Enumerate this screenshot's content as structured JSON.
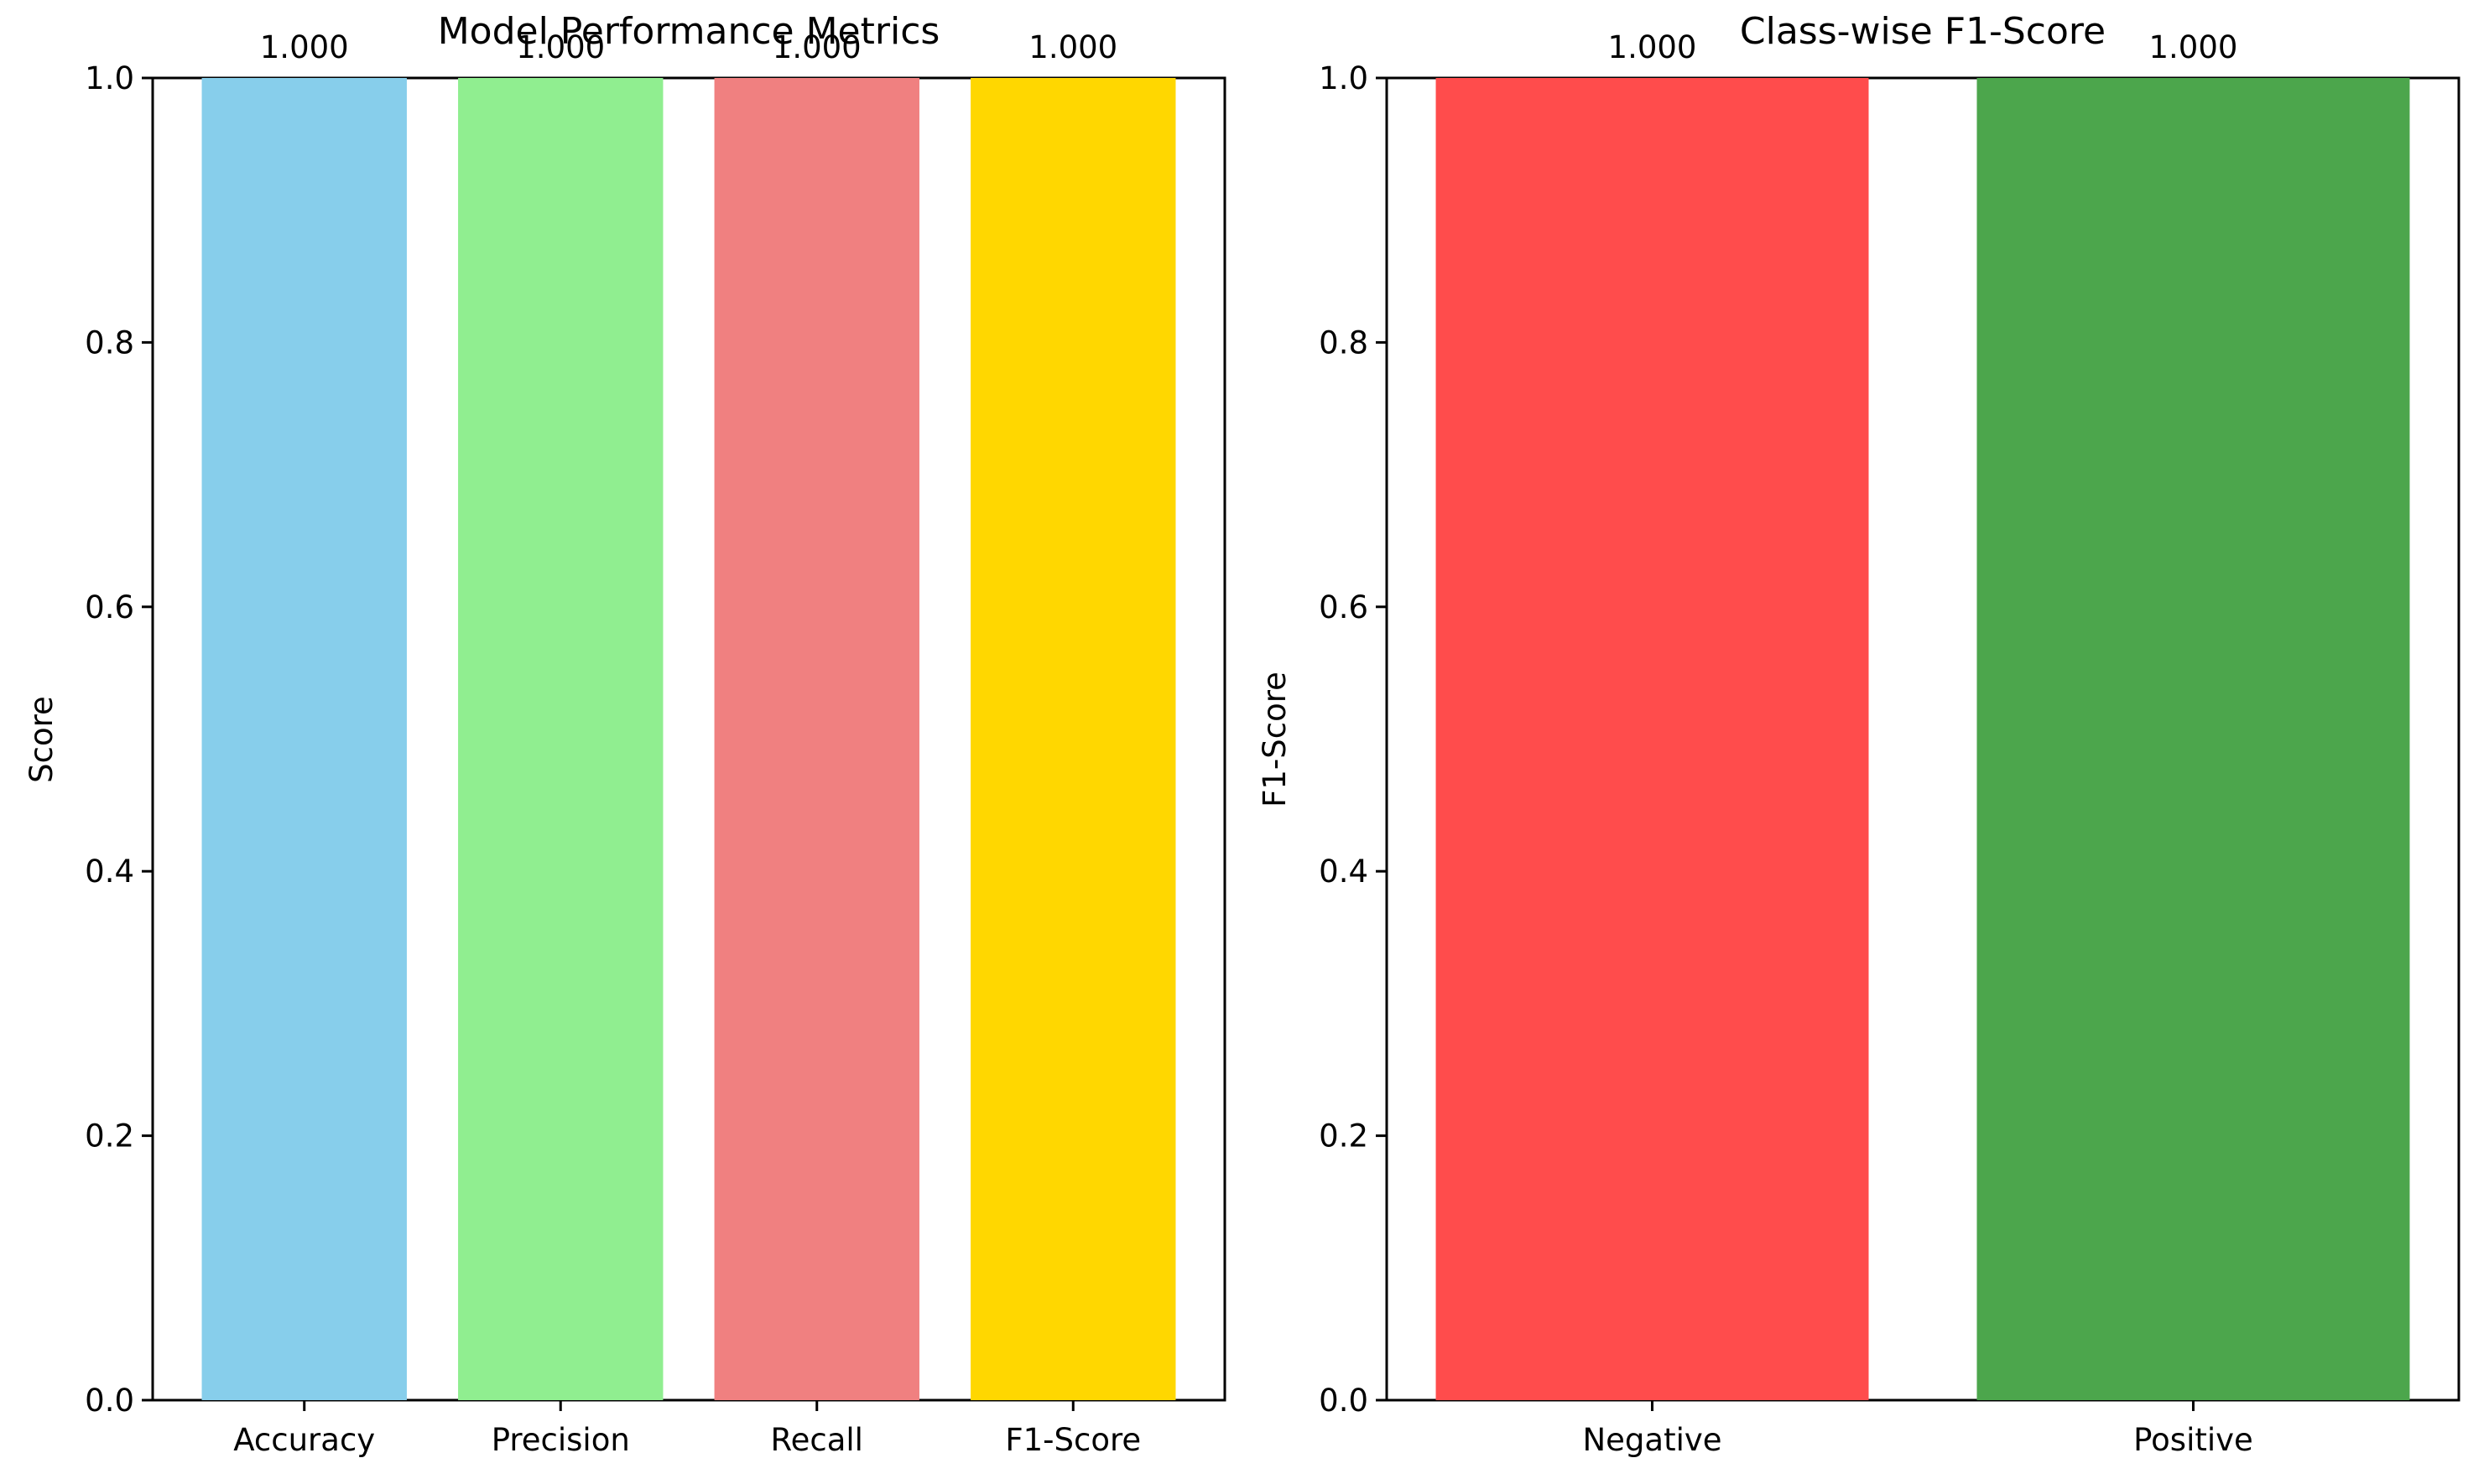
{
  "chart_data": [
    {
      "type": "bar",
      "title": "Model Performance Metrics",
      "xlabel": "",
      "ylabel": "Score",
      "ylim": [
        0,
        1.0
      ],
      "yticks": [
        0.0,
        0.2,
        0.4,
        0.6,
        0.8,
        1.0
      ],
      "ytick_labels": [
        "0.0",
        "0.2",
        "0.4",
        "0.6",
        "0.8",
        "1.0"
      ],
      "categories": [
        "Accuracy",
        "Precision",
        "Recall",
        "F1-Score"
      ],
      "values": [
        1.0,
        1.0,
        1.0,
        1.0
      ],
      "value_labels": [
        "1.000",
        "1.000",
        "1.000",
        "1.000"
      ],
      "colors": [
        "#87ceeb",
        "#90ee90",
        "#f08080",
        "#ffd700"
      ],
      "grid": false
    },
    {
      "type": "bar",
      "title": "Class-wise F1-Score",
      "xlabel": "",
      "ylabel": "F1-Score",
      "ylim": [
        0,
        1.0
      ],
      "yticks": [
        0.0,
        0.2,
        0.4,
        0.6,
        0.8,
        1.0
      ],
      "ytick_labels": [
        "0.0",
        "0.2",
        "0.4",
        "0.6",
        "0.8",
        "1.0"
      ],
      "categories": [
        "Negative",
        "Positive"
      ],
      "values": [
        1.0,
        1.0
      ],
      "value_labels": [
        "1.000",
        "1.000"
      ],
      "colors": [
        "#ff4c4c",
        "#4ca64c"
      ],
      "grid": false
    }
  ]
}
